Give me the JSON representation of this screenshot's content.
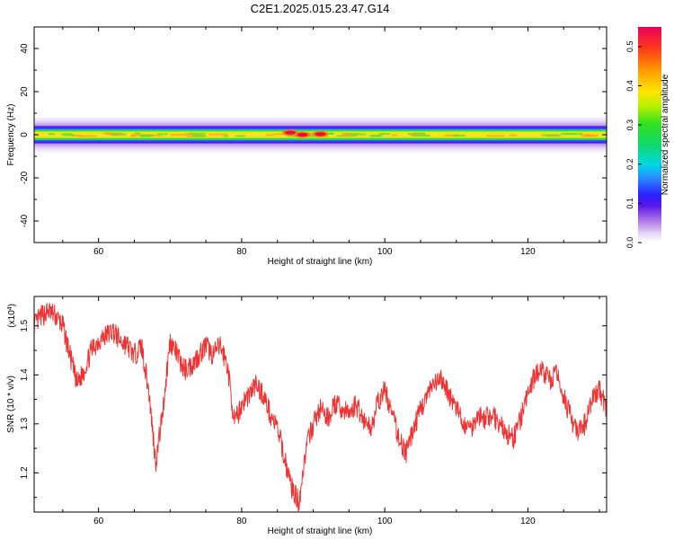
{
  "title": "C2E1.2025.015.23.47.G14",
  "colors": {
    "snr_line": "#ee3333",
    "frame": "#000000"
  },
  "chart_data": [
    {
      "type": "heatmap",
      "xlabel": "Height of straight line (km)",
      "ylabel": "Frequency (Hz)",
      "xlim": [
        51,
        131
      ],
      "ylim": [
        -50,
        50
      ],
      "xticks": [
        60,
        80,
        100,
        120
      ],
      "yticks": [
        40,
        20,
        0,
        -20,
        -40
      ],
      "band": {
        "x_range": [
          51,
          131
        ],
        "outer_halfwidth_hz": 8,
        "inner_halfwidth_hz": 4,
        "peak_halfwidth_hz": 1.5,
        "hot_spots": [
          {
            "x": 86.8,
            "freq": 1.0,
            "amplitude": 0.55
          },
          {
            "x": 88.5,
            "freq": 0.0,
            "amplitude": 0.55
          },
          {
            "x": 91.0,
            "freq": 0.3,
            "amplitude": 0.55
          }
        ]
      },
      "colorbar": {
        "label": "Normalized spectral amplitude",
        "range": [
          0.0,
          0.55
        ],
        "ticks": [
          0.0,
          0.1,
          0.2,
          0.3,
          0.4,
          0.5
        ],
        "tick_labels": [
          "0.0",
          "0.1",
          "0.2",
          "0.3",
          "0.4",
          "0.5"
        ]
      }
    },
    {
      "type": "line",
      "xlabel": "Height of straight line (km)",
      "ylabel": "SNR (10 * v/v)",
      "scale_note": "(x10",
      "scale_exp": "4",
      "scale_close": ")",
      "xlim": [
        51,
        131
      ],
      "ylim": [
        1.12,
        1.56
      ],
      "xticks": [
        60,
        80,
        100,
        120
      ],
      "yticks": [
        1.2,
        1.3,
        1.4,
        1.5
      ],
      "ytick_labels": [
        "1.2",
        "1.3",
        "1.4",
        "1.5"
      ],
      "series": [
        {
          "x": [
            51,
            52,
            53,
            54,
            55,
            56,
            57,
            58,
            59,
            60,
            61,
            62,
            63,
            64,
            65,
            66,
            67,
            68,
            69,
            70,
            71,
            72,
            73,
            74,
            75,
            76,
            77,
            78,
            79,
            80,
            81,
            82,
            83,
            84,
            85,
            86,
            87,
            88,
            89,
            90,
            91,
            92,
            93,
            94,
            95,
            96,
            97,
            98,
            99,
            100,
            101,
            102,
            103,
            104,
            105,
            106,
            107,
            108,
            109,
            110,
            111,
            112,
            113,
            114,
            115,
            116,
            117,
            118,
            119,
            120,
            121,
            122,
            123,
            124,
            125,
            126,
            127,
            128,
            129,
            130,
            131
          ],
          "values": [
            1.5,
            1.52,
            1.53,
            1.52,
            1.5,
            1.44,
            1.38,
            1.41,
            1.45,
            1.47,
            1.48,
            1.49,
            1.47,
            1.46,
            1.44,
            1.46,
            1.37,
            1.22,
            1.33,
            1.47,
            1.44,
            1.41,
            1.42,
            1.44,
            1.46,
            1.44,
            1.46,
            1.42,
            1.3,
            1.34,
            1.36,
            1.38,
            1.36,
            1.32,
            1.29,
            1.23,
            1.17,
            1.14,
            1.25,
            1.3,
            1.33,
            1.31,
            1.34,
            1.33,
            1.32,
            1.34,
            1.31,
            1.29,
            1.34,
            1.37,
            1.32,
            1.27,
            1.24,
            1.29,
            1.33,
            1.36,
            1.38,
            1.39,
            1.36,
            1.33,
            1.3,
            1.29,
            1.32,
            1.31,
            1.32,
            1.3,
            1.28,
            1.27,
            1.31,
            1.36,
            1.4,
            1.41,
            1.39,
            1.4,
            1.36,
            1.31,
            1.28,
            1.3,
            1.35,
            1.37,
            1.33
          ]
        }
      ]
    }
  ]
}
